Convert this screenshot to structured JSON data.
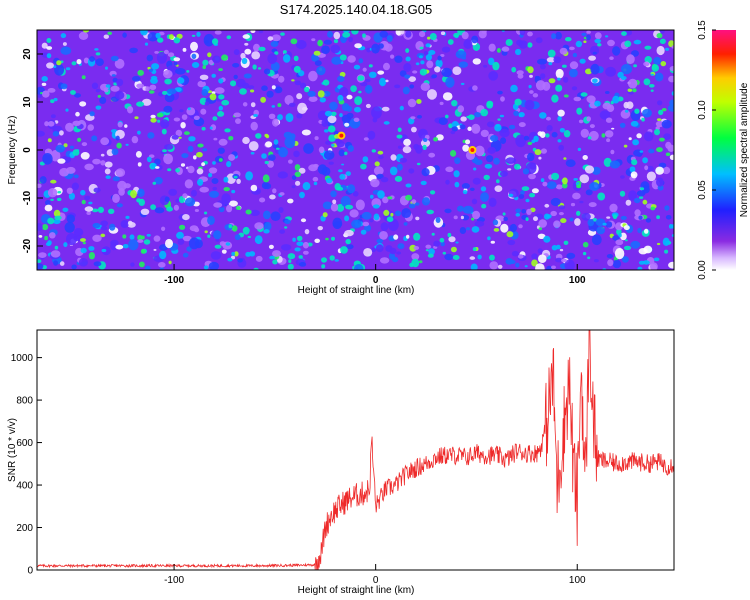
{
  "title": "S174.2025.140.04.18.G05",
  "colors": {
    "snr_line": "#ee2a2a",
    "axes": "#000000"
  },
  "chart_data": [
    {
      "type": "heatmap",
      "xlabel": "Height of straight line (km)",
      "ylabel": "Frequency (Hz)",
      "xlim": [
        -168,
        148
      ],
      "ylim": [
        -25,
        25
      ],
      "xticks": [
        "-100",
        "0",
        "100"
      ],
      "yticks": [
        "-20",
        "-10",
        "0",
        "10",
        "20"
      ],
      "colorbar": {
        "label": "Normalized spectral amplitude",
        "range": [
          0.0,
          0.15
        ],
        "ticks": [
          "0.00",
          "0.05",
          "0.10",
          "0.15"
        ],
        "colormap": "rainbow (white-violet-blue-cyan-green-yellow-red-magenta)"
      },
      "notes": "dense random speckle field; mostly blue/violet background with scattered cyan-green spots; strongest peaks near x=-17,y=3 and x=48,y=0"
    },
    {
      "type": "line",
      "xlabel": "Height of straight line (km)",
      "ylabel": "SNR (10 * v/v)",
      "xlim": [
        -168,
        148
      ],
      "ylim": [
        0,
        1130
      ],
      "xticks": [
        "-100",
        "0",
        "100"
      ],
      "yticks": [
        "0",
        "200",
        "400",
        "600",
        "800",
        "1000"
      ],
      "series": [
        {
          "x": [
            -168,
            -150,
            -120,
            -90,
            -60,
            -40,
            -30,
            -27,
            -25,
            -22,
            -18,
            -14,
            -10,
            -6,
            -3,
            -2,
            0,
            5,
            10,
            15,
            20,
            25,
            30,
            35,
            40,
            45,
            50,
            55,
            60,
            65,
            70,
            75,
            80,
            82,
            85,
            88,
            90,
            93,
            96,
            98,
            100,
            102,
            104,
            106,
            108,
            110,
            115,
            120,
            125,
            130,
            135,
            140,
            145,
            148
          ],
          "y": [
            20,
            20,
            20,
            20,
            20,
            22,
            25,
            80,
            200,
            260,
            300,
            330,
            350,
            360,
            380,
            620,
            300,
            380,
            400,
            450,
            480,
            500,
            530,
            540,
            540,
            530,
            550,
            540,
            540,
            520,
            560,
            550,
            550,
            580,
            700,
            920,
            400,
            640,
            900,
            500,
            300,
            960,
            380,
            1140,
            700,
            520,
            510,
            500,
            510,
            510,
            500,
            510,
            490,
            500
          ]
        }
      ]
    }
  ]
}
